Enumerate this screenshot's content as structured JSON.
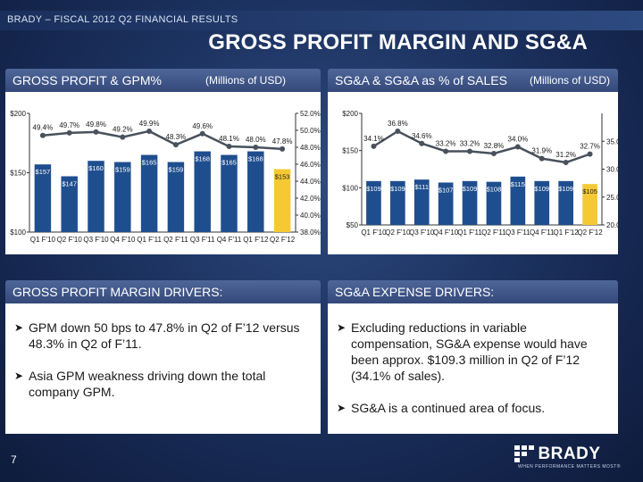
{
  "header": {
    "topbar": "BRADY – FISCAL 2012 Q2 FINANCIAL RESULTS",
    "title": "GROSS PROFIT MARGIN AND SG&A"
  },
  "panels": {
    "gp_title": "GROSS PROFIT & GPM%",
    "gp_units": "(Millions of USD)",
    "sga_title": "SG&A & SG&A as % of SALES",
    "sga_units": "(Millions of USD)",
    "gpm_drivers_title": "GROSS PROFIT MARGIN DRIVERS:",
    "sga_drivers_title": "SG&A EXPENSE DRIVERS:"
  },
  "gpm_bullets": [
    "GPM down 50 bps to 47.8% in Q2 of F’12 versus 48.3% in Q2 of F’11.",
    "Asia GPM weakness driving down the total company GPM."
  ],
  "sga_bullets": [
    "Excluding reductions in variable compensation, SG&A expense would have been approx. $109.3 million in Q2 of F’12 (34.1% of sales).",
    "SG&A is a continued area of focus."
  ],
  "footer": {
    "page_number": "7",
    "logo_text": "BRADY",
    "logo_tagline": "WHEN PERFORMANCE MATTERS MOST®"
  },
  "colors": {
    "bar": "#1f4e8f",
    "bar_highlight": "#f5c934",
    "line": "#48515c"
  },
  "icons": {
    "logo": "brady-logo-icon",
    "bullet": "arrow-bullet-icon"
  },
  "chart_data": [
    {
      "type": "bar",
      "categories": [
        "Q1 F'10",
        "Q2 F'10",
        "Q3 F'10",
        "Q4 F'10",
        "Q1 F'11",
        "Q2 F'11",
        "Q3 F'11",
        "Q4 F'11",
        "Q1 F'12",
        "Q2 F'12"
      ],
      "series": [
        {
          "values": [
            157,
            147,
            160,
            159,
            165,
            159,
            168,
            165,
            168,
            153
          ],
          "labels": [
            "$157",
            "$147",
            "$160",
            "$159",
            "$165",
            "$159",
            "$168",
            "$165",
            "$168",
            "$153"
          ]
        },
        {
          "values": [
            49.4,
            49.7,
            49.8,
            49.2,
            49.9,
            48.3,
            49.6,
            48.1,
            48.0,
            47.8
          ],
          "labels": [
            "49.4%",
            "49.7%",
            "49.8%",
            "49.2%",
            "49.9%",
            "48.3%",
            "49.6%",
            "48.1%",
            "48.0%",
            "47.8%"
          ]
        }
      ],
      "ylim": [
        100,
        200
      ],
      "yticks": [
        "$100",
        "$150",
        "$200"
      ],
      "ytick_values": [
        100,
        150,
        200
      ],
      "y2lim": [
        38,
        52
      ],
      "y2ticks": [
        "38.0%",
        "40.0%",
        "42.0%",
        "44.0%",
        "46.0%",
        "48.0%",
        "50.0%",
        "52.0%"
      ],
      "y2tick_values": [
        38,
        40,
        42,
        44,
        46,
        48,
        50,
        52
      ],
      "highlight_index": 9
    },
    {
      "type": "bar",
      "categories": [
        "Q1 F'10",
        "Q2 F'10",
        "Q3 F'10",
        "Q4 F'10",
        "Q1 F'11",
        "Q2 F'11",
        "Q3 F'11",
        "Q4 F'11",
        "Q1 F'12",
        "Q2 F'12"
      ],
      "series": [
        {
          "values": [
            109,
            109,
            111,
            107,
            109,
            108,
            115,
            109,
            109,
            105
          ],
          "labels": [
            "$109",
            "$109",
            "$111",
            "$107",
            "$109",
            "$108",
            "$115",
            "$109",
            "$109",
            "$105"
          ]
        },
        {
          "values": [
            34.1,
            36.8,
            34.6,
            33.2,
            33.2,
            32.8,
            34.0,
            31.9,
            31.2,
            32.7
          ],
          "labels": [
            "34.1%",
            "36.8%",
            "34.6%",
            "33.2%",
            "33.2%",
            "32.8%",
            "34.0%",
            "31.9%",
            "31.2%",
            "32.7%"
          ]
        }
      ],
      "ylim": [
        50,
        200
      ],
      "yticks": [
        "$50",
        "$100",
        "$150",
        "$200"
      ],
      "ytick_values": [
        50,
        100,
        150,
        200
      ],
      "y2lim": [
        20,
        40
      ],
      "y2ticks": [
        "20.0%",
        "25.0%",
        "30.0%",
        "35.0%"
      ],
      "y2tick_values": [
        20,
        25,
        30,
        35
      ],
      "highlight_index": 9
    }
  ]
}
